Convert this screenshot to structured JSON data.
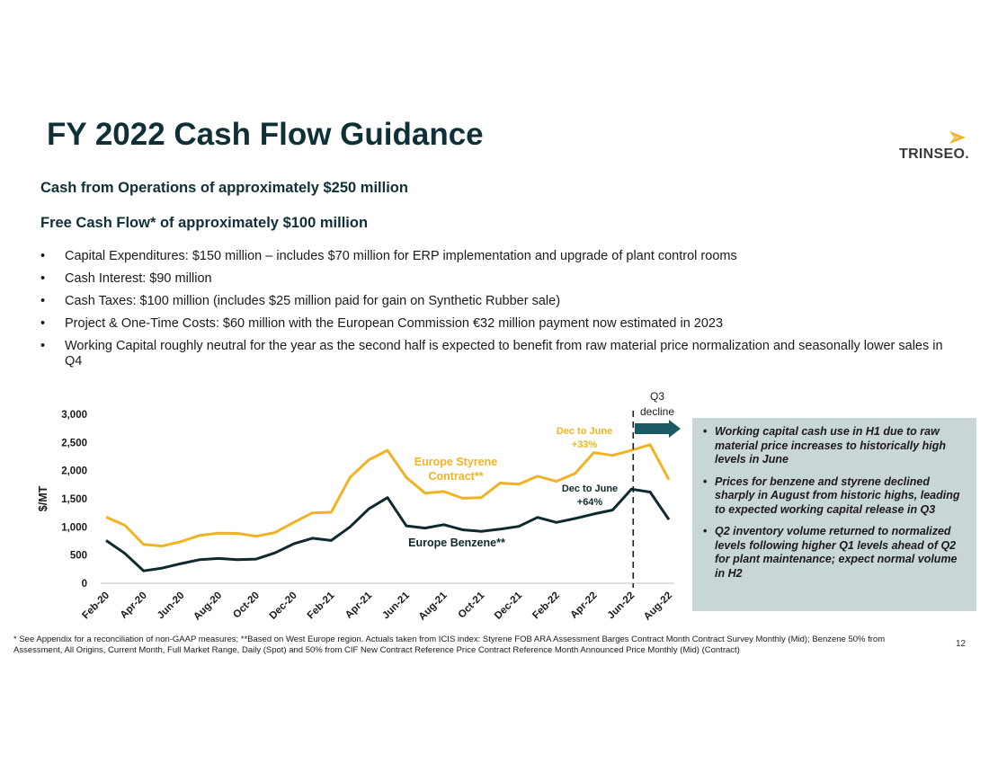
{
  "title": "FY 2022 Cash Flow Guidance",
  "logo": {
    "text": "TRINSEO."
  },
  "headlines": {
    "cfo": "Cash from Operations of approximately $250 million",
    "fcf": "Free Cash Flow* of approximately $100 million"
  },
  "bullet_glyph": "•",
  "bullets": [
    "Capital Expenditures: $150 million – includes $70 million for ERP implementation and upgrade of plant control rooms",
    "Cash Interest: $90 million",
    "Cash Taxes: $100 million (includes $25 million paid for gain on Synthetic Rubber sale)",
    "Project & One-Time Costs: $60 million with the European Commission €32 million payment now estimated in 2023",
    "Working Capital roughly neutral for the year as the second half is expected to benefit from raw material price normalization and seasonally lower sales in Q4"
  ],
  "side_box": [
    "Working capital cash use in H1 due to raw material price increases to historically high levels in June",
    "Prices for benzene and styrene declined sharply in August from historic highs, leading to expected working capital release in Q3",
    "Q2 inventory volume returned to normalized levels following higher Q1 levels ahead of Q2 for plant maintenance; expect normal volume in H2"
  ],
  "footnote": "* See Appendix for a reconciliation of non-GAAP measures; **Based on West Europe region. Actuals taken from ICIS index: Styrene FOB ARA Assessment Barges Contract Month Contract Survey Monthly (Mid); Benzene 50% from Assessment, All Origins, Current Month, Full Market Range, Daily (Spot) and 50% from CIF New Contract Reference Price Contract Reference Month Announced Price Monthly (Mid) (Contract)",
  "page_number": "12",
  "colors": {
    "styrene": "#f0b323",
    "benzene": "#0f2a2e",
    "title": "#0f3036",
    "arrow": "#1b5a62",
    "box": "#c9d6d7"
  },
  "chart_data": {
    "type": "line",
    "ylabel": "$/MT",
    "ylim": [
      0,
      3000
    ],
    "yticks": [
      "3,000",
      "2,500",
      "2,000",
      "1,500",
      "1,000",
      "500",
      "0"
    ],
    "ytick_values": [
      3000,
      2500,
      2000,
      1500,
      1000,
      500,
      0
    ],
    "x": [
      "Feb-20",
      "Mar-20",
      "Apr-20",
      "May-20",
      "Jun-20",
      "Jul-20",
      "Aug-20",
      "Sep-20",
      "Oct-20",
      "Nov-20",
      "Dec-20",
      "Jan-21",
      "Feb-21",
      "Mar-21",
      "Apr-21",
      "May-21",
      "Jun-21",
      "Jul-21",
      "Aug-21",
      "Sep-21",
      "Oct-21",
      "Nov-21",
      "Dec-21",
      "Jan-22",
      "Feb-22",
      "Mar-22",
      "Apr-22",
      "May-22",
      "Jun-22",
      "Jul-22",
      "Aug-22"
    ],
    "xtick_labels": [
      "Feb-20",
      "Apr-20",
      "Jun-20",
      "Aug-20",
      "Oct-20",
      "Dec-20",
      "Feb-21",
      "Apr-21",
      "Jun-21",
      "Aug-21",
      "Oct-21",
      "Dec-21",
      "Feb-22",
      "Apr-22",
      "Jun-22",
      "Aug-22"
    ],
    "series": [
      {
        "name": "Europe Styrene Contract**",
        "color": "#f0b323",
        "values": [
          1175,
          1030,
          690,
          660,
          740,
          850,
          890,
          885,
          835,
          900,
          1080,
          1250,
          1260,
          1880,
          2190,
          2360,
          1880,
          1600,
          1630,
          1510,
          1520,
          1780,
          1760,
          1900,
          1810,
          1950,
          2320,
          2270,
          2360,
          2460,
          1840
        ]
      },
      {
        "name": "Europe Benzene**",
        "color": "#0f2a2e",
        "values": [
          760,
          530,
          220,
          270,
          350,
          420,
          440,
          420,
          430,
          540,
          700,
          800,
          760,
          1000,
          1320,
          1520,
          1020,
          980,
          1040,
          950,
          920,
          960,
          1010,
          1170,
          1080,
          1150,
          1230,
          1300,
          1670,
          1620,
          1130
        ]
      }
    ],
    "annotations": {
      "styrene_label": "Europe Styrene",
      "styrene_label2": "Contract**",
      "benzene_label": "Europe Benzene**",
      "styrene_change": "Dec to June",
      "styrene_change_value": "+33%",
      "benzene_change": "Dec to June",
      "benzene_change_value": "+64%",
      "q3": "Q3",
      "q3_sub": "decline"
    },
    "grid": false
  }
}
